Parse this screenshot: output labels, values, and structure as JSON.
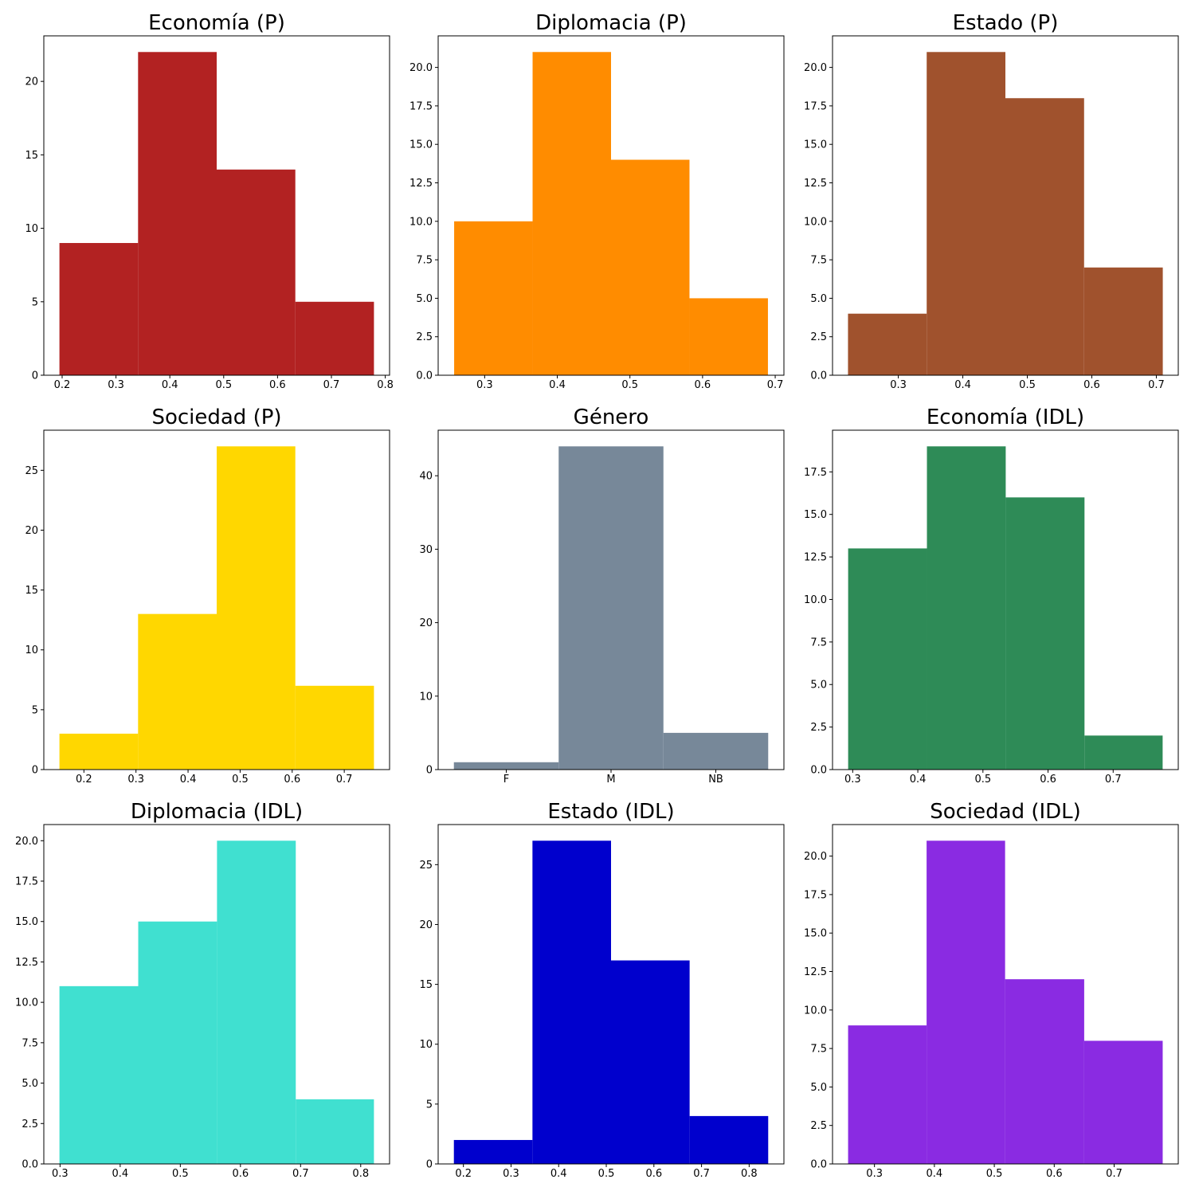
{
  "chart_data": [
    {
      "type": "bar",
      "histogram": true,
      "title": "Economía (P)",
      "color": "#b22222",
      "bin_edges": [
        0.195,
        0.341,
        0.487,
        0.633,
        0.779
      ],
      "counts": [
        9,
        22,
        14,
        5
      ],
      "xlim": [
        0.166,
        0.808
      ],
      "ylim": [
        0,
        23.1
      ],
      "xticks": [
        0.2,
        0.3,
        0.4,
        0.5,
        0.6,
        0.7,
        0.8
      ],
      "xtick_labels": [
        "0.2",
        "0.3",
        "0.4",
        "0.5",
        "0.6",
        "0.7",
        "0.8"
      ],
      "yticks": [
        0,
        5,
        10,
        15,
        20
      ],
      "ytick_labels": [
        "0",
        "5",
        "10",
        "15",
        "20"
      ]
    },
    {
      "type": "bar",
      "histogram": true,
      "title": "Diplomacia (P)",
      "color": "#ff8c00",
      "bin_edges": [
        0.258,
        0.366,
        0.474,
        0.582,
        0.69
      ],
      "counts": [
        10,
        21,
        14,
        5
      ],
      "xlim": [
        0.236,
        0.712
      ],
      "ylim": [
        0,
        22.05
      ],
      "xticks": [
        0.3,
        0.4,
        0.5,
        0.6,
        0.7
      ],
      "xtick_labels": [
        "0.3",
        "0.4",
        "0.5",
        "0.6",
        "0.7"
      ],
      "yticks": [
        0,
        2.5,
        5,
        7.5,
        10,
        12.5,
        15,
        17.5,
        20
      ],
      "ytick_labels": [
        "0.0",
        "2.5",
        "5.0",
        "7.5",
        "10.0",
        "12.5",
        "15.0",
        "17.5",
        "20.0"
      ]
    },
    {
      "type": "bar",
      "histogram": true,
      "title": "Estado (P)",
      "color": "#a0522d",
      "bin_edges": [
        0.222,
        0.344,
        0.466,
        0.588,
        0.71
      ],
      "counts": [
        4,
        21,
        18,
        7
      ],
      "xlim": [
        0.198,
        0.734
      ],
      "ylim": [
        0,
        22.05
      ],
      "xticks": [
        0.3,
        0.4,
        0.5,
        0.6,
        0.7
      ],
      "xtick_labels": [
        "0.3",
        "0.4",
        "0.5",
        "0.6",
        "0.7"
      ],
      "yticks": [
        0,
        2.5,
        5,
        7.5,
        10,
        12.5,
        15,
        17.5,
        20
      ],
      "ytick_labels": [
        "0.0",
        "2.5",
        "5.0",
        "7.5",
        "10.0",
        "12.5",
        "15.0",
        "17.5",
        "20.0"
      ]
    },
    {
      "type": "bar",
      "histogram": true,
      "title": "Sociedad (P)",
      "color": "#ffd700",
      "bin_edges": [
        0.153,
        0.304,
        0.455,
        0.606,
        0.757
      ],
      "counts": [
        3,
        13,
        27,
        7
      ],
      "xlim": [
        0.123,
        0.787
      ],
      "ylim": [
        0,
        28.35
      ],
      "xticks": [
        0.2,
        0.3,
        0.4,
        0.5,
        0.6,
        0.7
      ],
      "xtick_labels": [
        "0.2",
        "0.3",
        "0.4",
        "0.5",
        "0.6",
        "0.7"
      ],
      "yticks": [
        0,
        5,
        10,
        15,
        20,
        25
      ],
      "ytick_labels": [
        "0",
        "5",
        "10",
        "15",
        "20",
        "25"
      ]
    },
    {
      "type": "bar",
      "histogram": true,
      "title": "Género",
      "color": "#778899",
      "bin_edges": [
        0,
        0.6667,
        1.3333,
        2
      ],
      "counts": [
        1,
        44,
        5
      ],
      "xlim": [
        -0.1,
        2.1
      ],
      "ylim": [
        0,
        46.2
      ],
      "xticks": [
        0.3333,
        1,
        1.6667
      ],
      "xtick_labels": [
        "F",
        "M",
        "NB"
      ],
      "yticks": [
        0,
        10,
        20,
        30,
        40
      ],
      "ytick_labels": [
        "0",
        "10",
        "20",
        "30",
        "40"
      ]
    },
    {
      "type": "bar",
      "histogram": true,
      "title": "Economía (IDL)",
      "color": "#2e8b57",
      "bin_edges": [
        0.293,
        0.414,
        0.535,
        0.656,
        0.776
      ],
      "counts": [
        13,
        19,
        16,
        2
      ],
      "xlim": [
        0.269,
        0.8
      ],
      "ylim": [
        0,
        19.95
      ],
      "xticks": [
        0.3,
        0.4,
        0.5,
        0.6,
        0.7
      ],
      "xtick_labels": [
        "0.3",
        "0.4",
        "0.5",
        "0.6",
        "0.7"
      ],
      "yticks": [
        0,
        2.5,
        5,
        7.5,
        10,
        12.5,
        15,
        17.5
      ],
      "ytick_labels": [
        "0.0",
        "2.5",
        "5.0",
        "7.5",
        "10.0",
        "12.5",
        "15.0",
        "17.5"
      ]
    },
    {
      "type": "bar",
      "histogram": true,
      "title": "Diplomacia (IDL)",
      "color": "#40e0d0",
      "bin_edges": [
        0.299,
        0.43,
        0.561,
        0.692,
        0.822
      ],
      "counts": [
        11,
        15,
        20,
        4
      ],
      "xlim": [
        0.273,
        0.848
      ],
      "ylim": [
        0,
        21.0
      ],
      "xticks": [
        0.3,
        0.4,
        0.5,
        0.6,
        0.7,
        0.8
      ],
      "xtick_labels": [
        "0.3",
        "0.4",
        "0.5",
        "0.6",
        "0.7",
        "0.8"
      ],
      "yticks": [
        0,
        2.5,
        5,
        7.5,
        10,
        12.5,
        15,
        17.5,
        20
      ],
      "ytick_labels": [
        "0.0",
        "2.5",
        "5.0",
        "7.5",
        "10.0",
        "12.5",
        "15.0",
        "17.5",
        "20.0"
      ]
    },
    {
      "type": "bar",
      "histogram": true,
      "title": "Estado (IDL)",
      "color": "#0000cd",
      "bin_edges": [
        0.18,
        0.345,
        0.51,
        0.675,
        0.84
      ],
      "counts": [
        2,
        27,
        17,
        4
      ],
      "xlim": [
        0.147,
        0.873
      ],
      "ylim": [
        0,
        28.35
      ],
      "xticks": [
        0.2,
        0.3,
        0.4,
        0.5,
        0.6,
        0.7,
        0.8
      ],
      "xtick_labels": [
        "0.2",
        "0.3",
        "0.4",
        "0.5",
        "0.6",
        "0.7",
        "0.8"
      ],
      "yticks": [
        0,
        5,
        10,
        15,
        20,
        25
      ],
      "ytick_labels": [
        "0",
        "5",
        "10",
        "15",
        "20",
        "25"
      ]
    },
    {
      "type": "bar",
      "histogram": true,
      "title": "Sociedad (IDL)",
      "color": "#8a2be2",
      "bin_edges": [
        0.256,
        0.387,
        0.518,
        0.65,
        0.781
      ],
      "counts": [
        9,
        21,
        12,
        8
      ],
      "xlim": [
        0.23,
        0.807
      ],
      "ylim": [
        0,
        22.05
      ],
      "xticks": [
        0.3,
        0.4,
        0.5,
        0.6,
        0.7
      ],
      "xtick_labels": [
        "0.3",
        "0.4",
        "0.5",
        "0.6",
        "0.7"
      ],
      "yticks": [
        0,
        2.5,
        5,
        7.5,
        10,
        12.5,
        15,
        17.5,
        20
      ],
      "ytick_labels": [
        "0.0",
        "2.5",
        "5.0",
        "7.5",
        "10.0",
        "12.5",
        "15.0",
        "17.5",
        "20.0"
      ]
    }
  ]
}
